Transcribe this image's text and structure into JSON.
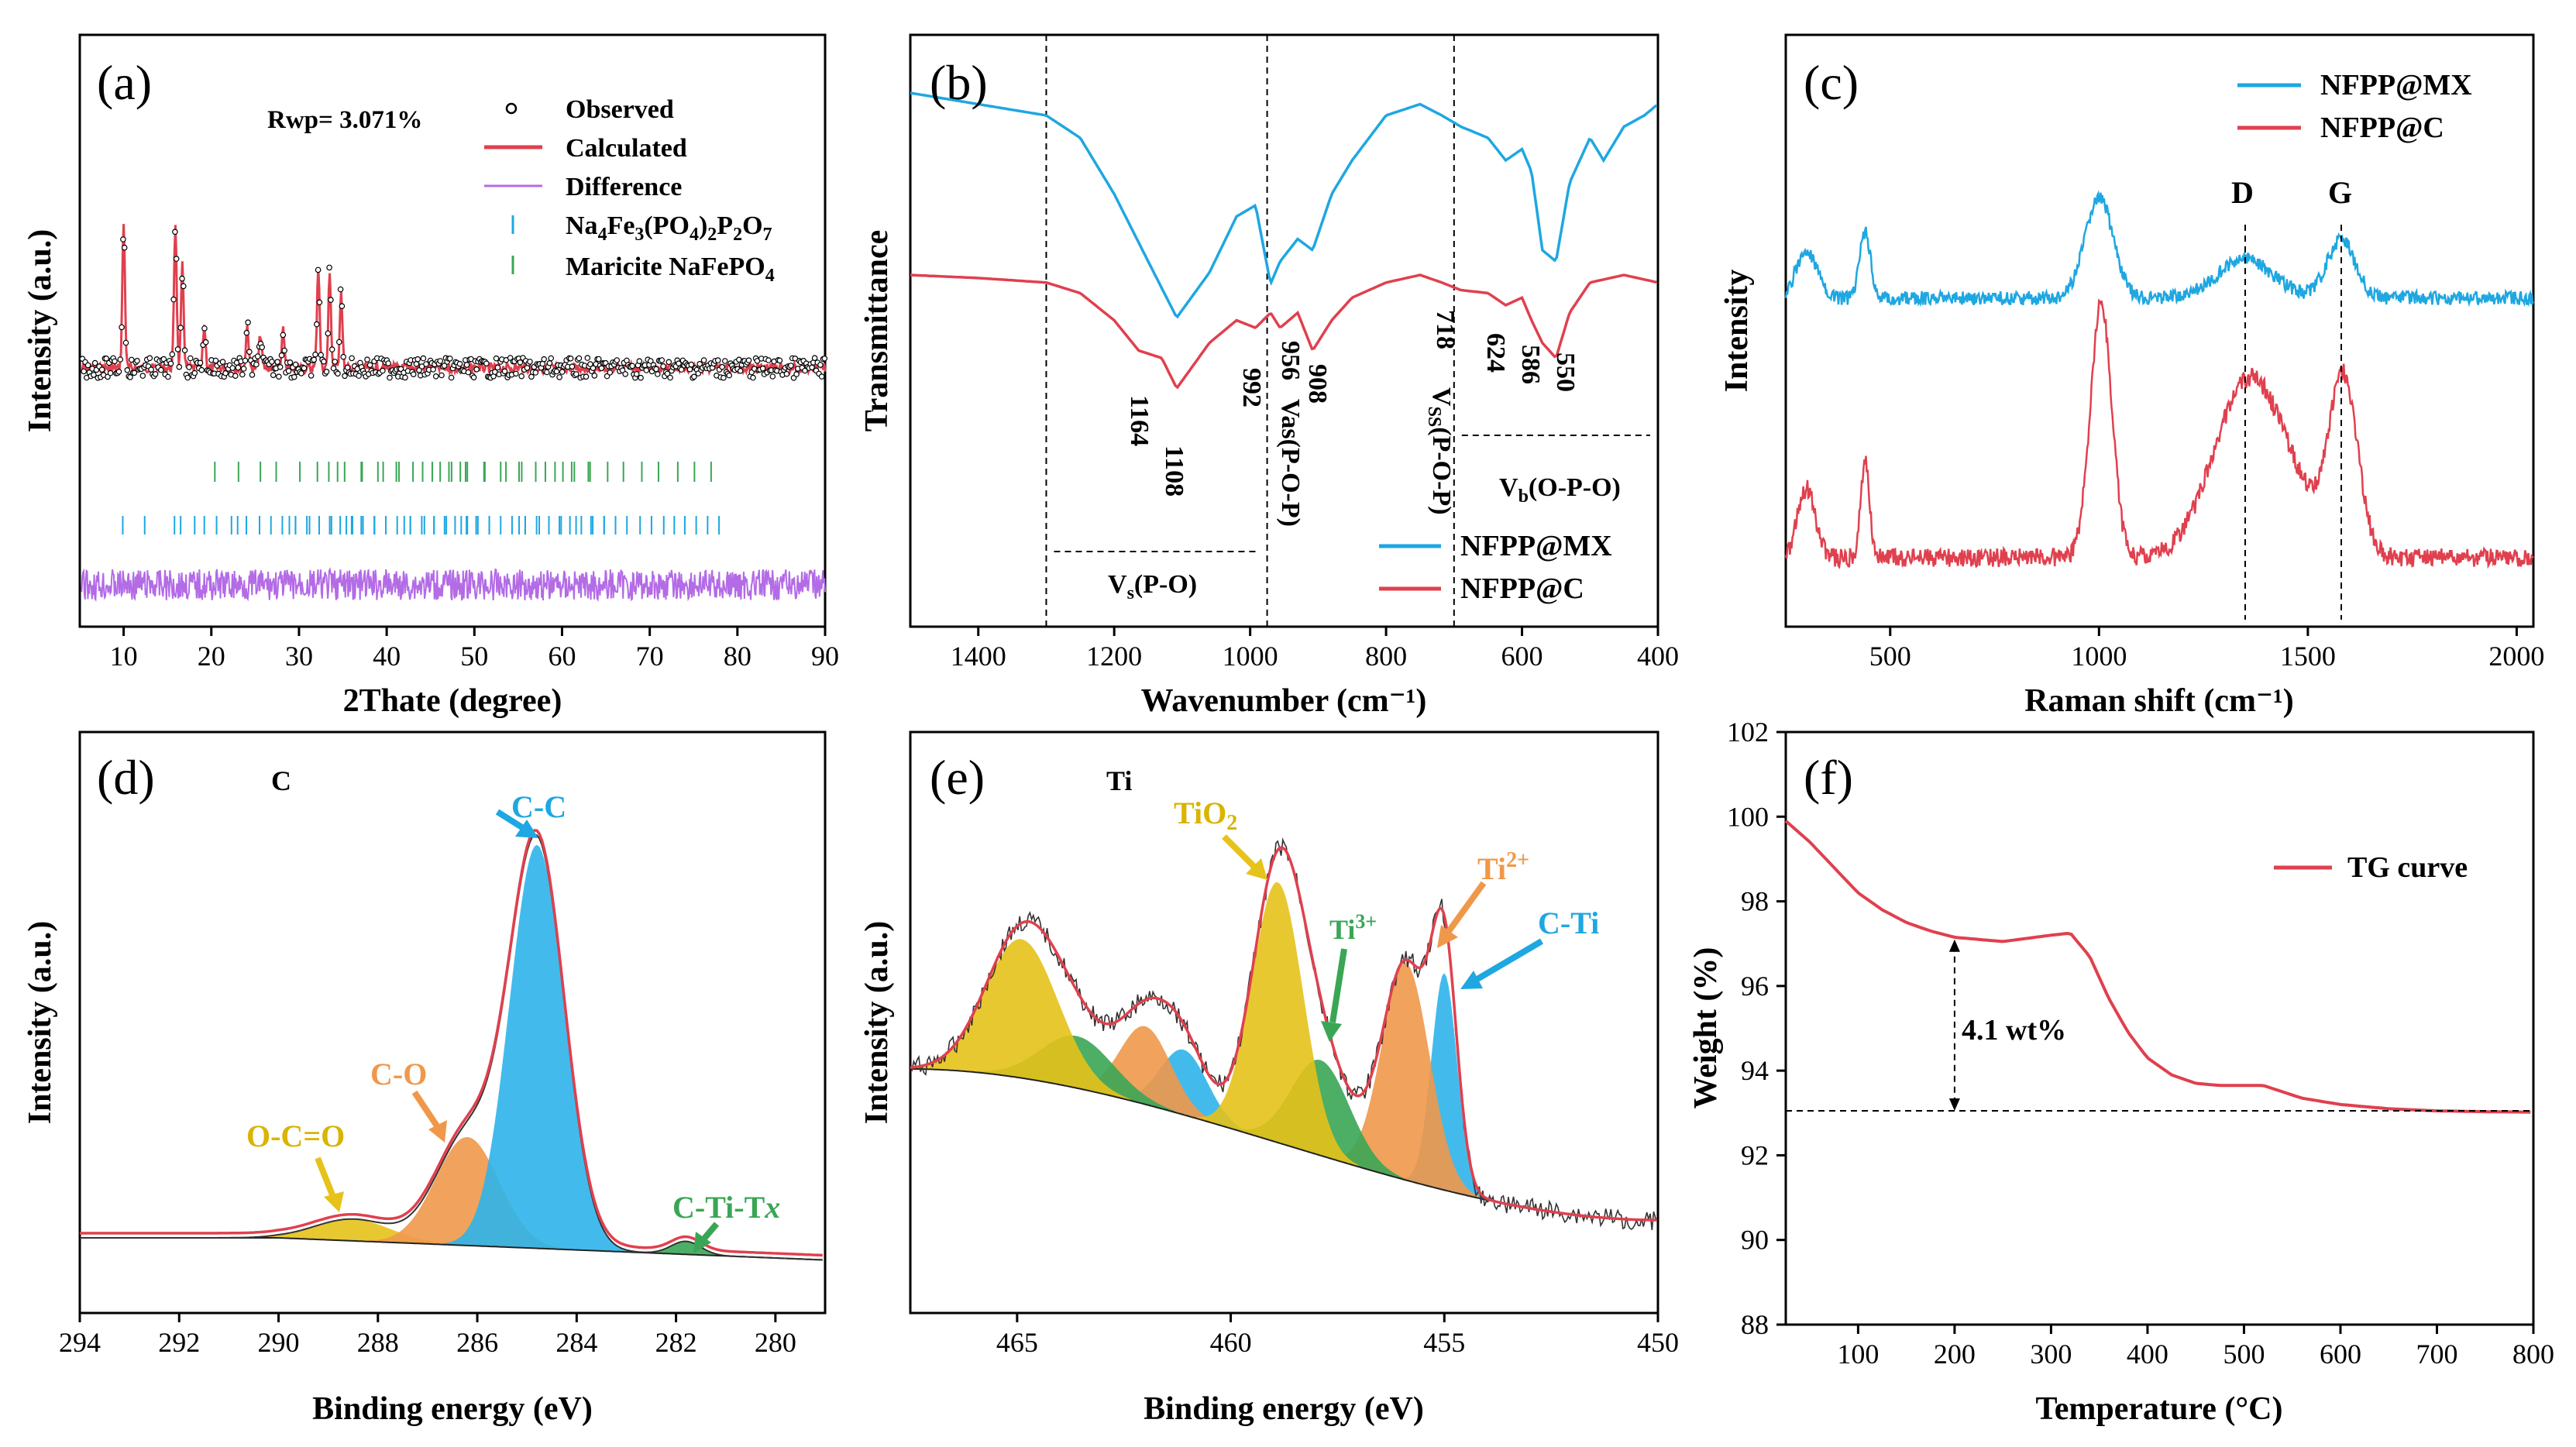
{
  "colors": {
    "red": "#e0404e",
    "blue": "#1ea7e1",
    "purple": "#b36be6",
    "green": "#3aa655",
    "yellow": "#e6c21a",
    "orange": "#f0984a",
    "cyan_peak": "#2eb4ea",
    "black": "#000000"
  },
  "chart_data": [
    {
      "panel": "(a)",
      "type": "line",
      "xlabel": "2Thate (degree)",
      "ylabel": "Intensity (a.u.)",
      "xlim": [
        5,
        90
      ],
      "xticks": [
        10,
        20,
        30,
        40,
        50,
        60,
        70,
        80,
        90
      ],
      "annotation": "Rwp= 3.071%",
      "legend": [
        "Observed",
        "Calculated",
        "Difference",
        "Na4Fe3(PO4)2P2O7",
        "Maricite NaFePO4"
      ],
      "peaks_2theta": [
        10.0,
        15.9,
        16.7,
        19.2,
        24.1,
        25.6,
        28.2,
        32.2,
        33.5,
        34.8
      ],
      "peak_heights_rel": [
        0.85,
        0.85,
        0.6,
        0.25,
        0.25,
        0.2,
        0.22,
        0.6,
        0.55,
        0.45
      ],
      "reflections_Na4Fe3": [
        9.9,
        12.4,
        15.8,
        16.5,
        18.1,
        19.2,
        20.6,
        22.3,
        24.0,
        25.5,
        26.8,
        28.1,
        29.6,
        30.9,
        32.3,
        33.5,
        34.7,
        36.0,
        37.3,
        38.6
      ],
      "reflections_maricite": [
        20.4,
        23.1,
        25.6,
        27.4,
        30.1,
        32.1,
        33.4,
        35.2,
        37.2,
        39.0,
        41.1,
        43.0,
        45.2,
        47.1,
        49.0
      ]
    },
    {
      "panel": "(b)",
      "type": "line",
      "xlabel": "Wavenumber (cm⁻¹)",
      "ylabel": "Transmittance",
      "xlim": [
        1500,
        400
      ],
      "xticks": [
        1400,
        1200,
        1000,
        800,
        600,
        400
      ],
      "series": [
        {
          "name": "NFPP@MX",
          "color": "blue",
          "x": [
            1500,
            1400,
            1300,
            1250,
            1200,
            1150,
            1108,
            1060,
            1020,
            992,
            970,
            956,
            930,
            908,
            880,
            850,
            800,
            750,
            718,
            690,
            650,
            624,
            600,
            586,
            570,
            550,
            530,
            500,
            480,
            450,
            420,
            400
          ],
          "y": [
            0.0,
            0.05,
            0.1,
            0.2,
            0.45,
            0.75,
            1.0,
            0.8,
            0.55,
            0.5,
            0.85,
            0.75,
            0.65,
            0.7,
            0.45,
            0.3,
            0.1,
            0.05,
            0.1,
            0.15,
            0.2,
            0.3,
            0.25,
            0.35,
            0.7,
            0.75,
            0.4,
            0.2,
            0.3,
            0.15,
            0.1,
            0.05
          ]
        },
        {
          "name": "NFPP@C",
          "color": "red",
          "x": [
            1500,
            1400,
            1300,
            1250,
            1200,
            1164,
            1130,
            1108,
            1060,
            1020,
            992,
            970,
            956,
            930,
            908,
            880,
            850,
            800,
            750,
            718,
            690,
            650,
            624,
            600,
            586,
            570,
            550,
            530,
            500,
            450,
            400
          ],
          "y": [
            0.0,
            0.02,
            0.05,
            0.12,
            0.3,
            0.5,
            0.55,
            0.75,
            0.45,
            0.3,
            0.35,
            0.25,
            0.35,
            0.25,
            0.5,
            0.3,
            0.15,
            0.05,
            0.0,
            0.05,
            0.1,
            0.12,
            0.2,
            0.15,
            0.3,
            0.45,
            0.55,
            0.25,
            0.05,
            0.0,
            0.05
          ]
        }
      ],
      "peak_labels": [
        "1164",
        "1108",
        "992",
        "956",
        "908",
        "718",
        "624",
        "586",
        "550"
      ],
      "band_labels": {
        "vs": "V",
        "vs_sub": "s",
        "vs_tail": "(P-O)",
        "vas": "Vas(P-O-P)",
        "vss": "V",
        "vss_sub": "SS",
        "vss_tail": "(P-O-P)",
        "vb": "V",
        "vb_sub": "b",
        "vb_tail": "(O-P-O)"
      },
      "band_ranges": {
        "vs": [
          1300,
          975
        ],
        "vb": [
          700,
          400
        ]
      }
    },
    {
      "panel": "(c)",
      "type": "line",
      "xlabel": "Raman shift (cm⁻¹)",
      "ylabel": "Intensity",
      "xlim": [
        250,
        2040
      ],
      "xticks": [
        500,
        1000,
        1500,
        2000
      ],
      "series": [
        {
          "name": "NFPP@MX",
          "color": "blue"
        },
        {
          "name": "NFPP@C",
          "color": "red"
        }
      ],
      "bands": [
        {
          "label": "D",
          "x": 1350
        },
        {
          "label": "G",
          "x": 1580
        }
      ]
    },
    {
      "panel": "(d)",
      "type": "area",
      "element": "C",
      "xlabel": "Binding energy (eV)",
      "ylabel": "Intensity (a.u.)",
      "xlim": [
        294,
        279
      ],
      "xticks": [
        294,
        292,
        290,
        288,
        286,
        284,
        282,
        280
      ],
      "components": [
        {
          "name": "C-C",
          "center": 284.8,
          "height": 0.93,
          "fwhm": 1.3,
          "color": "cyan_peak"
        },
        {
          "name": "C-O",
          "center": 286.2,
          "height": 0.25,
          "fwhm": 1.5,
          "color": "orange"
        },
        {
          "name": "O-C=O",
          "center": 288.5,
          "height": 0.05,
          "fwhm": 1.8,
          "color": "yellow"
        },
        {
          "name": "C-Ti-Tx",
          "center": 281.8,
          "height": 0.03,
          "fwhm": 0.7,
          "color": "green"
        }
      ],
      "label_c_ti_main": "C-Ti-T",
      "label_c_ti_suffix": "x"
    },
    {
      "panel": "(e)",
      "type": "area",
      "element": "Ti",
      "xlabel": "Binding energy (eV)",
      "ylabel": "Intensity (a.u.)",
      "xlim": [
        467.5,
        450
      ],
      "xticks": [
        465,
        460,
        455,
        450
      ],
      "components": [
        {
          "name": "TiO2",
          "center": 458.9,
          "height": 0.6,
          "fwhm": 1.4,
          "color": "yellow"
        },
        {
          "name": "TiO2 sat",
          "center": 464.9,
          "height": 0.32,
          "fwhm": 2.0,
          "color": "yellow"
        },
        {
          "name": "Ti3+",
          "center": 457.9,
          "height": 0.22,
          "fwhm": 1.6,
          "color": "green"
        },
        {
          "name": "Ti3+ sat",
          "center": 463.6,
          "height": 0.12,
          "fwhm": 2.0,
          "color": "green"
        },
        {
          "name": "Ti2+",
          "center": 455.9,
          "height": 0.5,
          "fwhm": 1.3,
          "color": "orange"
        },
        {
          "name": "Ti2+ sat",
          "center": 462.0,
          "height": 0.18,
          "fwhm": 1.4,
          "color": "orange"
        },
        {
          "name": "C-Ti",
          "center": 455.0,
          "height": 0.5,
          "fwhm": 0.7,
          "color": "cyan_peak"
        },
        {
          "name": "C-Ti sat",
          "center": 461.1,
          "height": 0.15,
          "fwhm": 1.3,
          "color": "cyan_peak"
        }
      ],
      "labels": {
        "tio2": "TiO",
        "tio2_sub": "2",
        "ti3": "Ti",
        "ti3_sup": "3+",
        "ti2": "Ti",
        "ti2_sup": "2+",
        "cti": "C-Ti"
      }
    },
    {
      "panel": "(f)",
      "type": "line",
      "xlabel": "Temperature (°C)",
      "ylabel": "Weight (%)",
      "xlim": [
        25,
        800
      ],
      "ylim": [
        88,
        102
      ],
      "xticks": [
        100,
        200,
        300,
        400,
        500,
        600,
        700,
        800
      ],
      "yticks": [
        88,
        90,
        92,
        94,
        96,
        98,
        100,
        102
      ],
      "series": [
        {
          "name": "TG curve",
          "color": "red",
          "x": [
            25,
            50,
            75,
            100,
            125,
            150,
            175,
            200,
            250,
            300,
            320,
            340,
            360,
            380,
            400,
            425,
            450,
            475,
            500,
            520,
            540,
            560,
            600,
            650,
            700,
            750,
            800
          ],
          "y": [
            99.9,
            99.4,
            98.8,
            98.2,
            97.8,
            97.5,
            97.3,
            97.15,
            97.05,
            97.2,
            97.25,
            96.7,
            95.7,
            94.9,
            94.3,
            93.9,
            93.7,
            93.65,
            93.65,
            93.65,
            93.5,
            93.35,
            93.2,
            93.1,
            93.05,
            93.03,
            93.02
          ]
        }
      ],
      "mass_loss_label": "4.1 wt%",
      "mass_loss": {
        "x": 200,
        "from": 97.1,
        "to": 93.05
      }
    }
  ]
}
